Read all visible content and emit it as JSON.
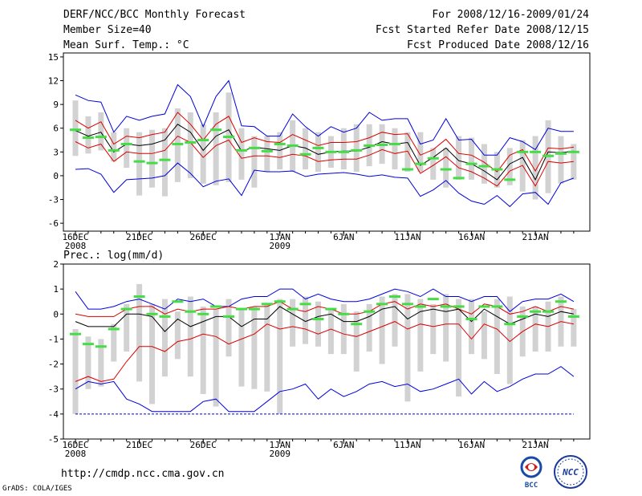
{
  "header": {
    "title": "DERF/NCC/BCC Monthly Forecast",
    "member_size": "Member Size=40",
    "variable_top": "Mean Surf. Temp.: °C",
    "for_range": "For 2008/12/16-2009/01/24",
    "fcst_started": "Fcst Started Refer Date 2008/12/15",
    "fcst_produced": "Fcst Produced Date 2008/12/16"
  },
  "footer": {
    "url": "http://cmdp.ncc.cma.gov.cn",
    "grads": "GrADS: COLA/IGES",
    "logo_bcc": "BCC",
    "logo_ncc": "NCC"
  },
  "colors": {
    "box": "#d2d2d2",
    "median": "#000000",
    "ensemble_mean": "#44dd44",
    "inner_bounds": "#dd0000",
    "outer_bounds": "#0000dd",
    "frame": "#000000"
  },
  "chart_data": [
    {
      "type": "box-line",
      "title": "Mean Surf. Temp.: °C",
      "ylabel": "°C",
      "ylim": [
        -7,
        15.5
      ],
      "yticks": [
        15,
        12,
        9,
        6,
        3,
        0,
        -3,
        -6
      ],
      "xtick_labels": [
        {
          "day": 0,
          "label": "16DEC",
          "sub": "2008"
        },
        {
          "day": 5,
          "label": "21DEC",
          "sub": ""
        },
        {
          "day": 10,
          "label": "26DEC",
          "sub": ""
        },
        {
          "day": 16,
          "label": "1JAN",
          "sub": "2009"
        },
        {
          "day": 21,
          "label": "6JAN",
          "sub": ""
        },
        {
          "day": 26,
          "label": "11JAN",
          "sub": ""
        },
        {
          "day": 31,
          "label": "16JAN",
          "sub": ""
        },
        {
          "day": 36,
          "label": "21JAN",
          "sub": ""
        }
      ],
      "days": 40,
      "box_low": [
        2.5,
        2.8,
        3.2,
        1.8,
        1.0,
        -2.5,
        -1.5,
        -2.6,
        -0.8,
        -0.3,
        -1.0,
        -1.2,
        -0.8,
        -0.5,
        -1.5,
        0.5,
        0.8,
        0.5,
        0.8,
        0.5,
        1.0,
        0.8,
        0.5,
        1.2,
        1.5,
        0.8,
        0.5,
        0.5,
        -0.5,
        -1.5,
        -0.5,
        -0.5,
        -1.0,
        -1.5,
        -1.2,
        -2.0,
        -3.0,
        -2.2,
        -1.0,
        -0.5
      ],
      "box_high": [
        9.5,
        7.5,
        8.0,
        5.5,
        6.0,
        5.5,
        5.8,
        6.0,
        8.5,
        8.0,
        6.5,
        8.0,
        10.5,
        6.0,
        5.0,
        5.0,
        5.5,
        7.0,
        6.0,
        5.5,
        5.0,
        6.0,
        6.5,
        6.5,
        6.5,
        6.0,
        5.5,
        5.5,
        3.5,
        3.5,
        5.0,
        4.8,
        4.0,
        3.0,
        3.5,
        4.5,
        5.0,
        7.0,
        5.0,
        4.0
      ],
      "mean": [
        5.8,
        4.8,
        4.9,
        3.2,
        4.0,
        1.8,
        1.6,
        2.0,
        4.0,
        4.2,
        4.5,
        5.8,
        4.9,
        3.2,
        3.5,
        3.1,
        4.0,
        3.8,
        2.7,
        3.5,
        3.0,
        3.0,
        3.2,
        3.8,
        3.9,
        4.0,
        0.8,
        1.5,
        2.2,
        0.8,
        -0.3,
        1.5,
        1.2,
        0.8,
        -0.5,
        3.0,
        3.0,
        2.5,
        2.8,
        3.0
      ],
      "median": [
        5.7,
        5.0,
        5.5,
        3.0,
        4.0,
        3.8,
        4.0,
        4.5,
        6.5,
        5.5,
        3.2,
        5.0,
        5.8,
        3.1,
        3.6,
        3.4,
        3.2,
        3.8,
        3.5,
        2.7,
        3.0,
        3.1,
        3.1,
        3.6,
        4.3,
        4.0,
        4.2,
        1.3,
        2.3,
        3.5,
        1.9,
        1.5,
        0.6,
        -0.5,
        1.5,
        2.3,
        -0.5,
        3.0,
        2.9,
        3.1
      ],
      "inner_upper": [
        7.0,
        6.0,
        6.8,
        4.0,
        5.0,
        4.8,
        5.2,
        5.5,
        8.0,
        6.5,
        4.5,
        6.5,
        7.5,
        4.2,
        4.8,
        4.3,
        4.2,
        5.2,
        4.5,
        3.8,
        4.2,
        4.2,
        4.3,
        4.8,
        5.5,
        5.2,
        5.3,
        2.6,
        3.3,
        4.6,
        2.8,
        2.6,
        1.7,
        0.5,
        2.6,
        3.3,
        0.6,
        3.5,
        3.4,
        3.6
      ],
      "inner_lower": [
        4.3,
        3.5,
        4.0,
        1.8,
        3.0,
        2.8,
        2.8,
        3.2,
        5.0,
        4.2,
        2.3,
        3.8,
        4.5,
        2.2,
        2.5,
        2.5,
        2.3,
        2.7,
        2.5,
        1.8,
        2.0,
        2.1,
        2.1,
        2.6,
        3.3,
        2.8,
        3.1,
        0.3,
        1.3,
        2.4,
        1.0,
        0.5,
        -0.3,
        -1.3,
        0.6,
        1.3,
        -1.3,
        1.8,
        1.6,
        1.8
      ],
      "outer_upper": [
        10.2,
        9.5,
        9.3,
        5.5,
        7.5,
        7.0,
        7.5,
        7.8,
        11.5,
        10.0,
        6.2,
        10.0,
        12.0,
        6.3,
        6.2,
        5.0,
        5.0,
        7.8,
        6.2,
        5.0,
        6.2,
        5.5,
        6.0,
        8.0,
        7.0,
        7.2,
        7.2,
        4.0,
        4.5,
        7.2,
        4.5,
        4.6,
        2.6,
        2.6,
        4.8,
        4.3,
        3.3,
        6.0,
        5.6,
        5.6
      ],
      "outer_lower": [
        0.8,
        0.9,
        0.2,
        -2.1,
        -0.5,
        -0.4,
        -0.3,
        0.0,
        1.6,
        0.3,
        -1.4,
        -0.7,
        -0.4,
        -2.5,
        0.7,
        0.5,
        0.5,
        0.6,
        -0.1,
        0.2,
        0.3,
        0.4,
        0.2,
        -0.1,
        0.1,
        -0.2,
        -0.3,
        -2.6,
        -1.8,
        -0.6,
        -2.2,
        -3.2,
        -3.6,
        -2.5,
        -3.9,
        -2.3,
        -2.1,
        -3.6,
        -0.9,
        -0.3
      ]
    },
    {
      "type": "box-line",
      "title": "Prec.: log(mm/d)",
      "ylabel": "log(mm/d)",
      "ylim": [
        -5,
        2
      ],
      "yticks": [
        2,
        1,
        0,
        -1,
        -2,
        -3,
        -4,
        -5
      ],
      "xtick_labels": [
        {
          "day": 0,
          "label": "16DEC",
          "sub": "2008"
        },
        {
          "day": 5,
          "label": "21DEC",
          "sub": ""
        },
        {
          "day": 10,
          "label": "26DEC",
          "sub": ""
        },
        {
          "day": 16,
          "label": "1JAN",
          "sub": "2009"
        },
        {
          "day": 21,
          "label": "6JAN",
          "sub": ""
        },
        {
          "day": 26,
          "label": "11JAN",
          "sub": ""
        },
        {
          "day": 31,
          "label": "16JAN",
          "sub": ""
        },
        {
          "day": 36,
          "label": "21JAN",
          "sub": ""
        }
      ],
      "days": 40,
      "box_low": [
        -4.0,
        -3.0,
        -2.9,
        -1.9,
        -1.5,
        -2.7,
        -3.6,
        -2.5,
        -1.8,
        -2.5,
        -3.2,
        -3.7,
        -1.7,
        -2.9,
        -3.0,
        -3.1,
        -4.0,
        -1.3,
        -1.2,
        -1.3,
        -1.6,
        -1.6,
        -2.3,
        -1.5,
        -2.0,
        -1.3,
        -3.5,
        -2.3,
        -1.6,
        -1.9,
        -3.3,
        -1.6,
        -1.8,
        -2.4,
        -2.8,
        -1.7,
        -1.5,
        -1.5,
        -1.3,
        -1.3
      ],
      "box_high": [
        -0.6,
        -0.9,
        -1.0,
        -0.4,
        0.4,
        1.2,
        0.4,
        0.6,
        0.1,
        0.7,
        0.3,
        0.2,
        0.6,
        0.2,
        0.3,
        0.4,
        0.6,
        0.6,
        0.7,
        0.5,
        0.2,
        0.4,
        0.1,
        0.4,
        0.7,
        0.8,
        0.8,
        0.6,
        0.4,
        0.8,
        0.6,
        0.6,
        0.1,
        0.6,
        0.7,
        0.3,
        0.3,
        0.5,
        0.7,
        0.2
      ],
      "mean": [
        -0.8,
        -1.2,
        -1.3,
        -0.6,
        0.2,
        0.7,
        0.0,
        -0.1,
        0.5,
        0.1,
        0.0,
        0.3,
        -0.1,
        0.2,
        0.2,
        0.4,
        0.5,
        0.2,
        0.4,
        -0.2,
        0.2,
        0.0,
        -0.4,
        0.1,
        0.4,
        0.7,
        0.4,
        0.3,
        0.6,
        0.3,
        0.3,
        -0.2,
        0.3,
        0.3,
        -0.4,
        -0.1,
        0.1,
        0.1,
        0.5,
        -0.1
      ],
      "median": [
        -0.3,
        -0.5,
        -0.5,
        -0.5,
        0.0,
        0.0,
        -0.1,
        -0.7,
        -0.2,
        -0.5,
        -0.3,
        -0.1,
        -0.1,
        -0.5,
        -0.2,
        -0.2,
        0.3,
        0.0,
        -0.3,
        -0.1,
        0.0,
        -0.3,
        -0.3,
        -0.1,
        0.2,
        0.3,
        -0.2,
        0.1,
        0.2,
        0.1,
        0.2,
        -0.3,
        0.2,
        -0.1,
        -0.4,
        -0.2,
        0.0,
        -0.1,
        0.1,
        0.0
      ],
      "inner_upper": [
        0.0,
        -0.1,
        -0.1,
        -0.1,
        0.2,
        0.3,
        0.3,
        0.0,
        0.2,
        0.1,
        0.2,
        0.2,
        0.3,
        0.2,
        0.3,
        0.3,
        0.5,
        0.2,
        0.1,
        0.3,
        0.2,
        0.0,
        0.0,
        0.1,
        0.4,
        0.5,
        0.2,
        0.4,
        0.3,
        0.4,
        0.2,
        0.0,
        0.4,
        0.3,
        0.0,
        0.1,
        0.3,
        0.1,
        0.3,
        0.2
      ],
      "inner_lower": [
        -2.7,
        -2.5,
        -2.7,
        -2.6,
        -1.9,
        -1.3,
        -1.3,
        -1.5,
        -1.1,
        -1.0,
        -0.8,
        -0.9,
        -1.2,
        -1.0,
        -0.8,
        -0.4,
        -0.6,
        -0.5,
        -0.6,
        -0.8,
        -0.6,
        -0.8,
        -0.9,
        -0.7,
        -0.5,
        -0.3,
        -0.6,
        -0.4,
        -0.5,
        -0.4,
        -0.4,
        -1.0,
        -0.4,
        -0.6,
        -1.1,
        -0.7,
        -0.4,
        -0.5,
        -0.3,
        -0.4
      ],
      "outer_upper": [
        0.9,
        0.2,
        0.2,
        0.3,
        0.5,
        0.6,
        0.4,
        0.2,
        0.6,
        0.5,
        0.6,
        0.3,
        0.3,
        0.6,
        0.7,
        0.7,
        1.0,
        1.0,
        0.6,
        0.8,
        0.6,
        0.5,
        0.5,
        0.6,
        0.8,
        1.0,
        0.9,
        0.7,
        1.0,
        0.7,
        0.7,
        0.5,
        0.7,
        0.7,
        0.1,
        0.5,
        0.6,
        0.6,
        0.8,
        0.5
      ],
      "outer_lower": [
        -3.0,
        -2.7,
        -2.8,
        -2.7,
        -3.4,
        -3.6,
        -3.9,
        -3.9,
        -3.9,
        -3.9,
        -3.5,
        -3.4,
        -3.9,
        -3.9,
        -3.9,
        -3.5,
        -3.1,
        -3.0,
        -2.8,
        -3.4,
        -3.0,
        -3.3,
        -3.1,
        -2.8,
        -2.7,
        -2.9,
        -2.8,
        -3.1,
        -3.0,
        -2.8,
        -2.6,
        -3.2,
        -2.7,
        -3.1,
        -2.9,
        -2.6,
        -2.4,
        -2.4,
        -2.1,
        -2.5
      ],
      "floor": -4.0
    }
  ]
}
